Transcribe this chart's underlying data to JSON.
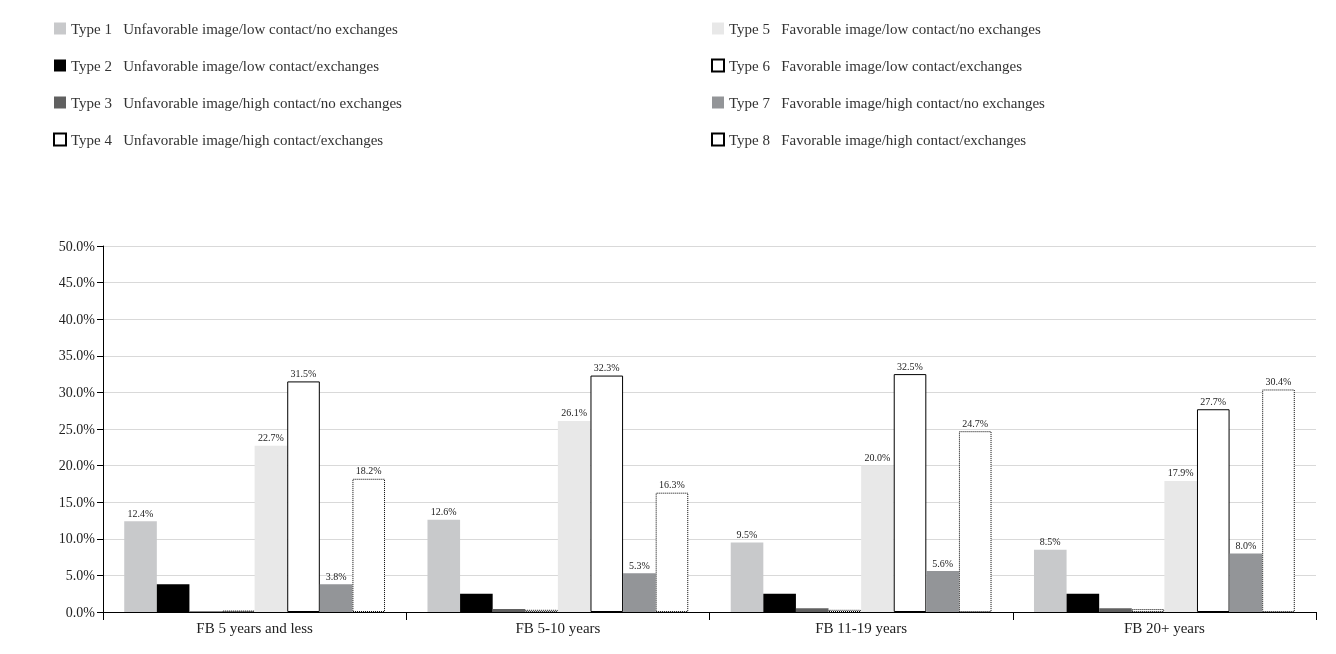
{
  "chart_data": {
    "type": "bar",
    "categories": [
      "FB 5 years and less",
      "FB 5-10 years",
      "FB 11-19 years",
      "FB 20+ years"
    ],
    "series": [
      {
        "name": "Type 1   Unfavorable image/low contact/no exchanges",
        "color": "#c8c9cb",
        "values": [
          12.4,
          12.6,
          9.5,
          8.5
        ],
        "value_labels": [
          "12.4%",
          "12.6%",
          "9.5%",
          "8.5%"
        ]
      },
      {
        "name": "Type 2   Unfavorable image/low contact/exchanges",
        "color": "#000000",
        "values": [
          3.8,
          2.5,
          2.5,
          2.5
        ]
      },
      {
        "name": "Type 3   Unfavorable image/high contact/no exchanges",
        "color": "#606060",
        "values": [
          0.1,
          0.4,
          0.5,
          0.5
        ]
      },
      {
        "name": "Type 4   Unfavorable image/high contact/exchanges",
        "color": "#ffffff",
        "line_style": "dotted",
        "values": [
          0.2,
          0.3,
          0.3,
          0.4
        ]
      },
      {
        "name": "Type 5   Favorable image/low contact/no exchanges",
        "color": "#e8e8e8",
        "values": [
          22.7,
          26.1,
          20.0,
          17.9
        ],
        "value_labels": [
          "22.7%",
          "26.1%",
          "20.0%",
          "17.9%"
        ]
      },
      {
        "name": "Type 6   Favorable image/low contact/exchanges",
        "color": "#ffffff",
        "line_style": "solid",
        "values": [
          31.5,
          32.3,
          32.5,
          27.7
        ],
        "value_labels": [
          "31.5%",
          "32.3%",
          "32.5%",
          "27.7%"
        ]
      },
      {
        "name": "Type 7   Favorable image/high contact/no exchanges",
        "color": "#939598",
        "values": [
          3.8,
          5.3,
          5.6,
          8.0
        ],
        "value_labels": [
          "3.8%",
          "5.3%",
          "5.6%",
          "8.0%"
        ]
      },
      {
        "name": "Type 8   Favorable image/high contact/exchanges",
        "color": "#ffffff",
        "line_style": "dotted",
        "values": [
          18.2,
          16.3,
          24.7,
          30.4
        ],
        "value_labels": [
          "18.2%",
          "16.3%",
          "24.7%",
          "30.4%"
        ]
      }
    ],
    "ylim": [
      0,
      50
    ],
    "yticks": [
      {
        "value": 0,
        "label": "0.0%"
      },
      {
        "value": 5,
        "label": "5.0%"
      },
      {
        "value": 10,
        "label": "10.0%"
      },
      {
        "value": 15,
        "label": "15.0%"
      },
      {
        "value": 20,
        "label": "20.0%"
      },
      {
        "value": 25,
        "label": "25.0%"
      },
      {
        "value": 30,
        "label": "30.0%"
      },
      {
        "value": 35,
        "label": "35.0%"
      },
      {
        "value": 40,
        "label": "40.0%"
      },
      {
        "value": 45,
        "label": "45.0%"
      },
      {
        "value": 50,
        "label": "50.0%"
      }
    ],
    "grid": "y",
    "legend": "top"
  }
}
